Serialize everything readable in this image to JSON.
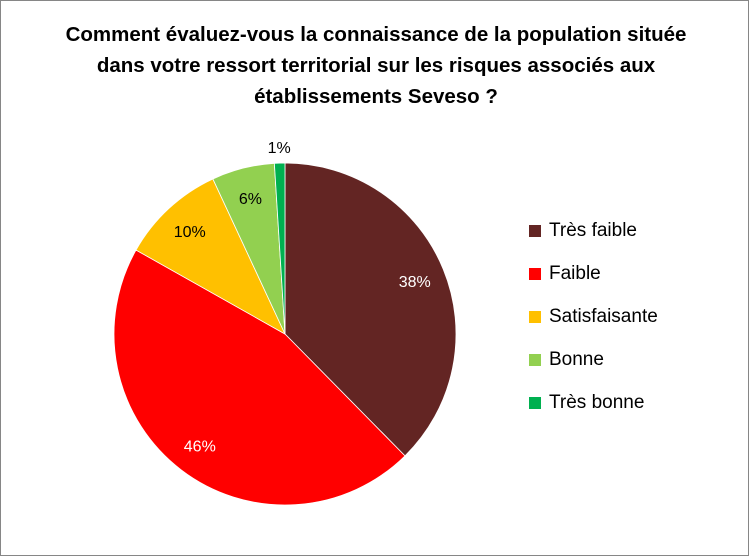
{
  "chart_data": {
    "type": "pie",
    "title": "Comment évaluez-vous la connaissance  de la population située dans votre ressort territorial sur les risques associés aux établissements Seveso ?",
    "categories": [
      "Très faible",
      "Faible",
      "Satisfaisante",
      "Bonne",
      "Très bonne"
    ],
    "values": [
      38,
      46,
      10,
      6,
      1
    ],
    "data_labels": [
      "38%",
      "46%",
      "10%",
      "6%",
      "1%"
    ],
    "colors": [
      "#632523",
      "#FF0000",
      "#FFC000",
      "#92D050",
      "#00B050"
    ],
    "label_colors": [
      "#FFFFFF",
      "#FFFFFF",
      "#000000",
      "#000000",
      "#000000"
    ],
    "start": "top, clockwise",
    "legend": "right"
  }
}
